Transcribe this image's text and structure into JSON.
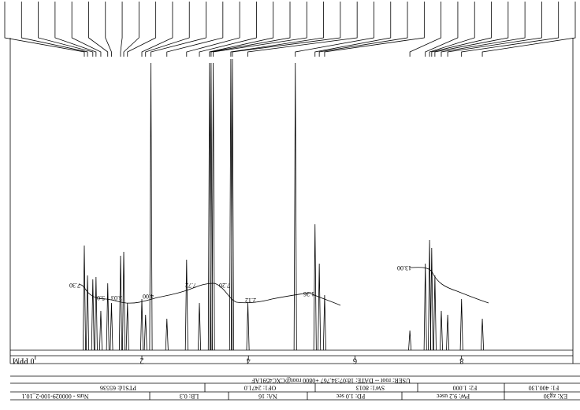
{
  "chart_data": {
    "type": "nmr",
    "x": [
      0.92,
      0.98,
      1.08,
      1.14,
      1.23,
      1.36,
      1.43,
      1.6,
      1.66,
      1.73,
      2.0,
      2.07,
      2.17,
      2.47,
      2.84,
      3.08,
      3.27,
      3.3,
      3.34,
      3.67,
      3.7,
      3.99,
      4.88,
      5.25,
      5.33,
      5.43,
      7.03,
      7.32,
      7.4,
      7.44,
      7.5,
      7.62,
      7.74,
      8.0,
      8.39
    ],
    "values": [
      133,
      95,
      90,
      93,
      50,
      85,
      60,
      120,
      125,
      60,
      65,
      45,
      365,
      40,
      115,
      60,
      365,
      365,
      365,
      370,
      370,
      60,
      365,
      160,
      110,
      70,
      25,
      110,
      140,
      130,
      95,
      50,
      45,
      65,
      40
    ],
    "xlim": [
      -0.47,
      10.09
    ],
    "ylim": [
      0,
      385
    ],
    "xticks": [
      {
        "value": 0,
        "label": "0 PPM"
      },
      2,
      4,
      6,
      8
    ],
    "integrals": [
      "7.30",
      "5.0",
      "3.03",
      "4.00",
      "7.72",
      "7.20",
      "2.12",
      "1.36",
      "13.00"
    ],
    "footer": {
      "user": "USER: root -- DATE: 18:07:34.767 +0800 root@CXC4591AF",
      "row1": [
        "F1: 400.130",
        "F2: 1.000",
        "SW1: 8013",
        "OF1: 2471.0",
        "PTS1d: 65536"
      ],
      "row2": [
        "EX: zg30",
        "PW: 9.2 usec",
        "PD: 1.0 sec",
        "NA: 16",
        "LB: 0.3",
        "Nuts - 000029-100-2_10.1"
      ]
    }
  }
}
